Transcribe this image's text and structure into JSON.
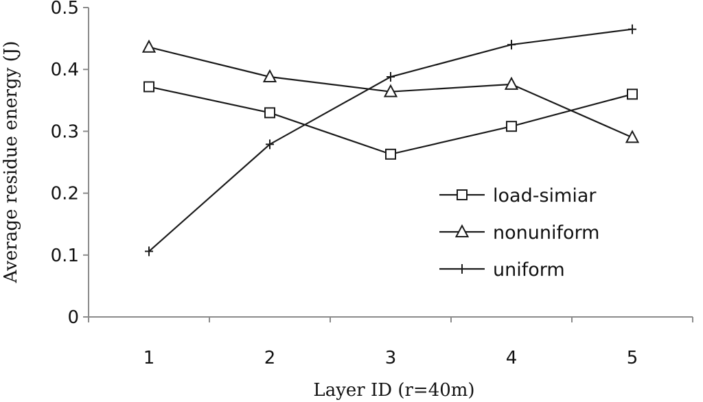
{
  "chart_data": {
    "type": "line",
    "xlabel": "Layer ID (r=40m)",
    "ylabel": "Average residue energy (J)",
    "ylim": [
      0,
      0.5
    ],
    "yticks": [
      "0",
      "0.1",
      "0.2",
      "0.3",
      "0.4",
      "0.5"
    ],
    "categories": [
      "1",
      "2",
      "3",
      "4",
      "5"
    ],
    "grid": false,
    "legend_position": "right",
    "series": [
      {
        "name": "load-simiar",
        "marker": "square",
        "values": [
          0.372,
          0.33,
          0.263,
          0.308,
          0.36
        ]
      },
      {
        "name": "nonuniform",
        "marker": "triangle",
        "values": [
          0.436,
          0.388,
          0.364,
          0.376,
          0.29
        ]
      },
      {
        "name": "uniform",
        "marker": "plus",
        "values": [
          0.106,
          0.279,
          0.388,
          0.44,
          0.465
        ]
      }
    ],
    "colors": {
      "line": "#1a1a1a",
      "axis": "#8a8a8a"
    }
  }
}
